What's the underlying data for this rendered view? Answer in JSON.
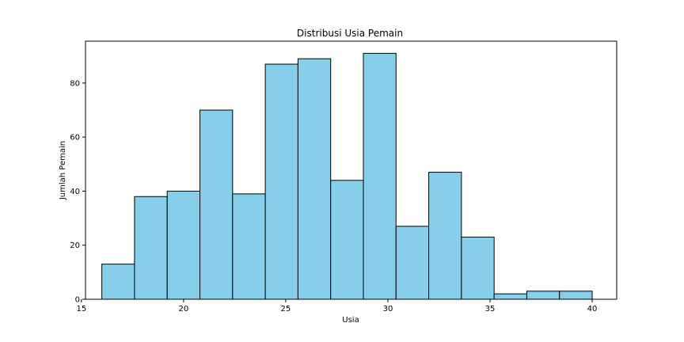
{
  "chart_data": {
    "type": "bar",
    "subtype": "histogram",
    "title": "Distribusi Usia Pemain",
    "xlabel": "Usia",
    "ylabel": "Jumlah Pemain",
    "bin_start": 16,
    "bin_end": 40,
    "bin_edges": [
      16,
      17.6,
      19.2,
      20.8,
      22.4,
      24,
      25.6,
      27.2,
      28.8,
      30.4,
      32,
      33.6,
      35.2,
      36.8,
      38.4,
      40
    ],
    "values": [
      13,
      38,
      40,
      70,
      39,
      87,
      89,
      44,
      91,
      27,
      47,
      23,
      2,
      3,
      3
    ],
    "xlim": [
      15.2,
      41.2
    ],
    "ylim": [
      0,
      95.5
    ],
    "x_ticks": [
      15,
      20,
      25,
      30,
      35,
      40
    ],
    "y_ticks": [
      0,
      20,
      40,
      60,
      80
    ],
    "bar_color": "#87ceeb",
    "edge_color": "#000000",
    "grid": false
  }
}
